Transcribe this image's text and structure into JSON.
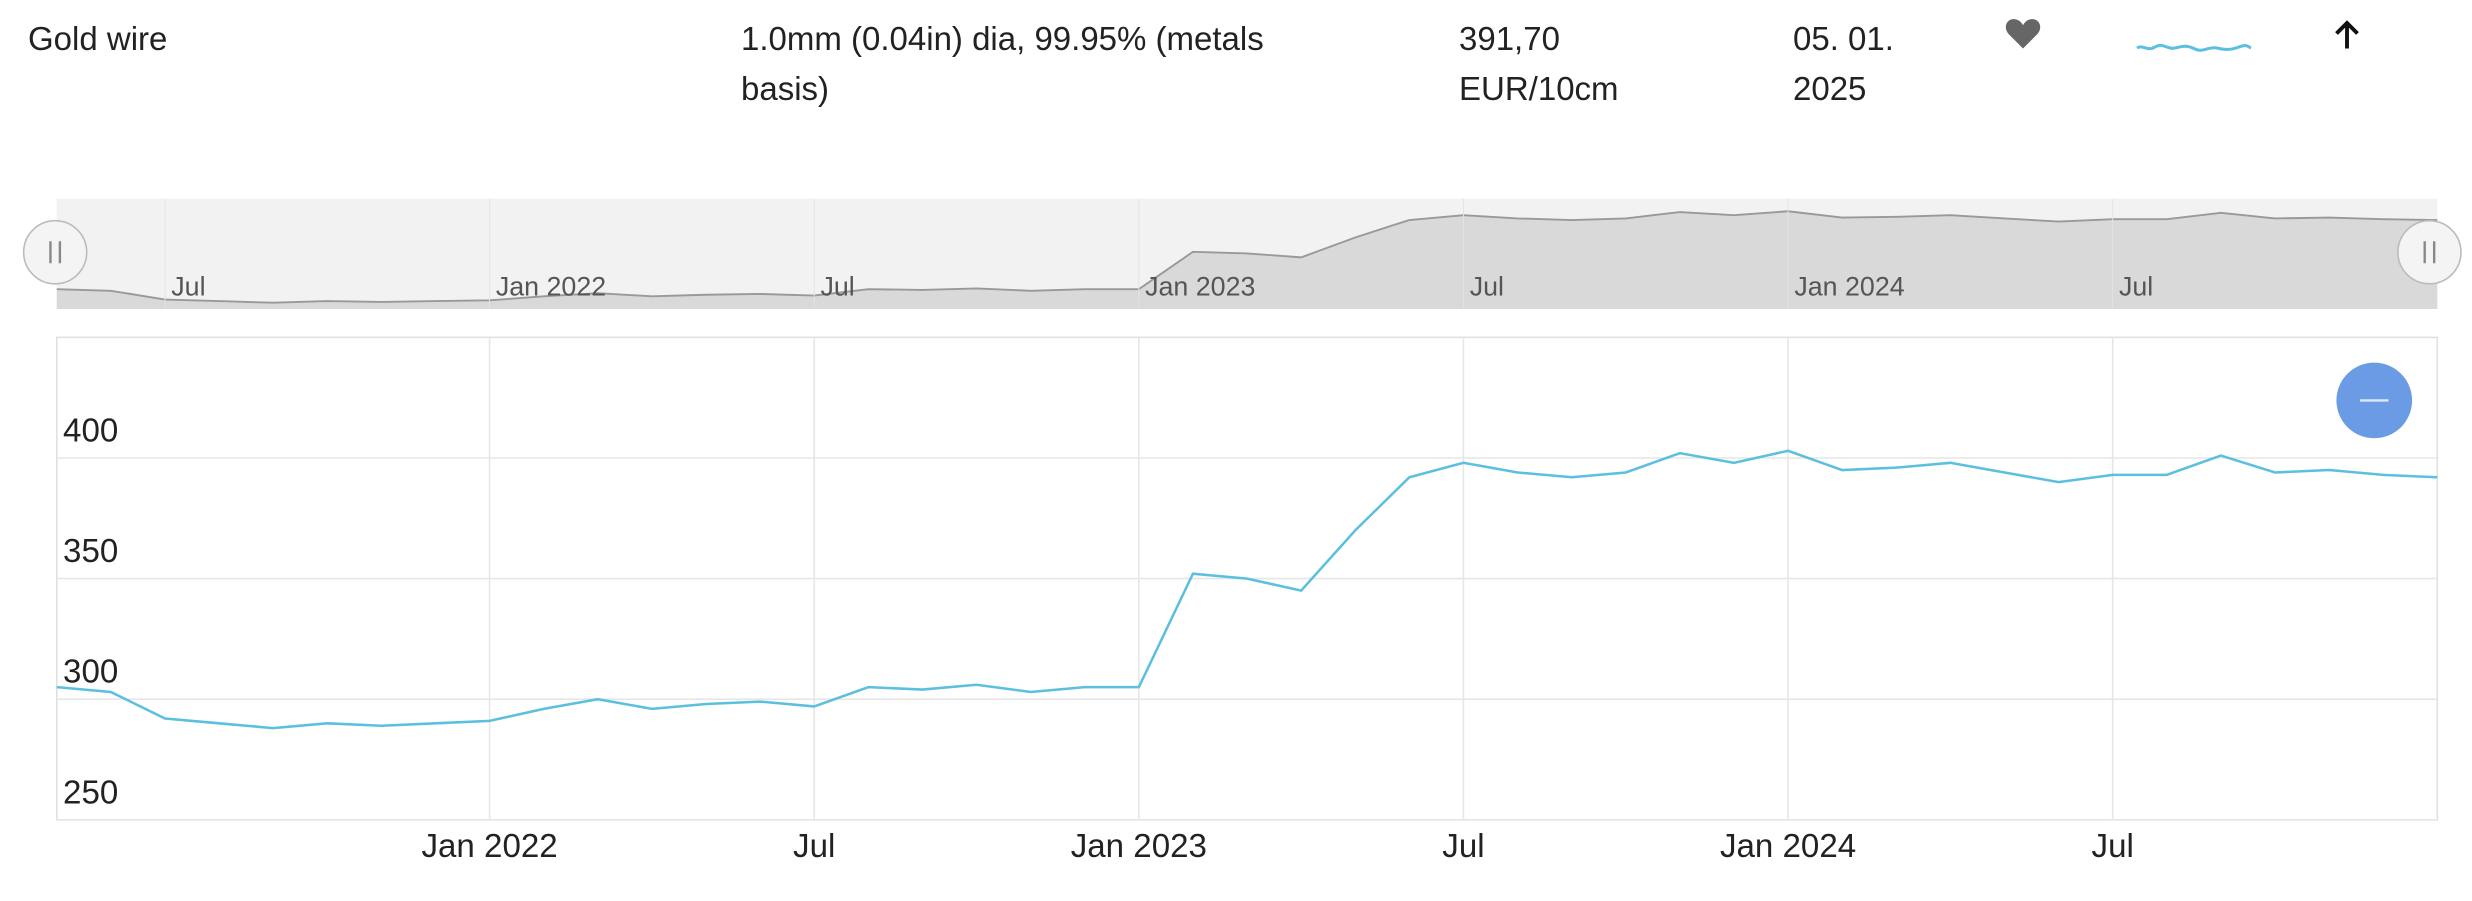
{
  "row": {
    "name": "Gold wire",
    "description": "1.0mm (0.04in) dia, 99.95% (metals basis)",
    "price": "391,70 EUR/10cm",
    "date": "05. 01. 2025"
  },
  "chart_data": {
    "type": "line",
    "x": [
      "2021-05",
      "2021-06",
      "2021-07",
      "2021-08",
      "2021-09",
      "2021-10",
      "2021-11",
      "2021-12",
      "2022-01",
      "2022-02",
      "2022-03",
      "2022-04",
      "2022-05",
      "2022-06",
      "2022-07",
      "2022-08",
      "2022-09",
      "2022-10",
      "2022-11",
      "2022-12",
      "2023-01",
      "2023-02",
      "2023-03",
      "2023-04",
      "2023-05",
      "2023-06",
      "2023-07",
      "2023-08",
      "2023-09",
      "2023-10",
      "2023-11",
      "2023-12",
      "2024-01",
      "2024-02",
      "2024-03",
      "2024-04",
      "2024-05",
      "2024-06",
      "2024-07",
      "2024-08",
      "2024-09",
      "2024-10",
      "2024-11",
      "2024-12",
      "2025-01"
    ],
    "values": [
      305,
      303,
      292,
      290,
      288,
      290,
      289,
      290,
      291,
      296,
      300,
      296,
      298,
      299,
      297,
      305,
      304,
      306,
      303,
      305,
      305,
      352,
      350,
      345,
      370,
      392,
      398,
      394,
      392,
      394,
      402,
      398,
      403,
      395,
      396,
      398,
      394,
      390,
      393,
      393,
      401,
      394,
      395,
      393,
      392
    ],
    "color": "#5bbfdf",
    "xlim": [
      "2021-05",
      "2025-01"
    ],
    "xticks": [
      {
        "value": "2022-01",
        "label": "Jan 2022"
      },
      {
        "value": "2022-07",
        "label": "Jul"
      },
      {
        "value": "2023-01",
        "label": "Jan 2023"
      },
      {
        "value": "2023-07",
        "label": "Jul"
      },
      {
        "value": "2024-01",
        "label": "Jan 2024"
      },
      {
        "value": "2024-07",
        "label": "Jul"
      }
    ],
    "ylim": [
      250,
      450
    ],
    "yticks": [
      250,
      300,
      350,
      400
    ],
    "grid": true,
    "navigator": {
      "xticks": [
        {
          "value": "2021-07",
          "label": "Jul"
        },
        {
          "value": "2022-01",
          "label": "Jan 2022"
        },
        {
          "value": "2022-07",
          "label": "Jul"
        },
        {
          "value": "2023-01",
          "label": "Jan 2023"
        },
        {
          "value": "2023-07",
          "label": "Jul"
        },
        {
          "value": "2024-01",
          "label": "Jan 2024"
        },
        {
          "value": "2024-07",
          "label": "Jul"
        }
      ]
    }
  }
}
